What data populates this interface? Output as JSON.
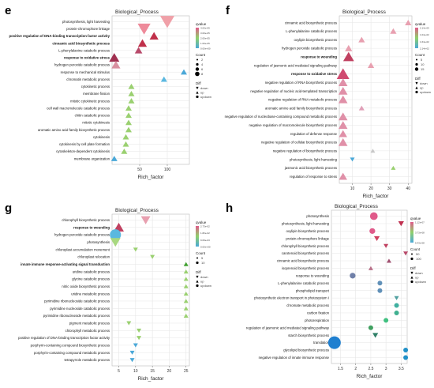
{
  "colors": {
    "qvalue_high": "#e05a8a",
    "qvalue_mid": "#8fd06a",
    "qvalue_low": "#4aa8d8",
    "grid": "#e6e6e6",
    "panel_border": "#bbbbbb"
  },
  "chart_data": [
    {
      "panel_letter": "e",
      "type": "scatter",
      "title": "Biological_Process",
      "xlabel": "Rich_factor",
      "xlim": [
        0,
        140
      ],
      "xticks": [
        "50",
        "100"
      ],
      "xtick_values": [
        50,
        100
      ],
      "legend": {
        "qvalue_title": "qvalue",
        "qvalue_labels": [
          "4.00e-05",
          "3.00e-05",
          "2.00e-05",
          "1.00e-05",
          "0.00e+00"
        ],
        "count_title": "Count",
        "count_labels": [
          "2",
          "4",
          "6",
          "8"
        ],
        "diff_title": "Diff",
        "diff_labels": [
          "down",
          "up",
          "updown"
        ]
      },
      "terms": [
        {
          "label": "photosynthesis, light harvesting",
          "bold": false,
          "x": 100,
          "count": 8,
          "shape": "down",
          "color": "#f0a0a8"
        },
        {
          "label": "protein-chromophore linkage",
          "bold": false,
          "x": 58,
          "count": 7,
          "shape": "down",
          "color": "#ee8a9a"
        },
        {
          "label": "positive regulation of DNA-binding transcription factor activity",
          "bold": true,
          "x": 76,
          "count": 4,
          "shape": "up",
          "color": "#c0304a"
        },
        {
          "label": "cinnamic acid biosynthetic process",
          "bold": true,
          "x": 55,
          "count": 4,
          "shape": "up",
          "color": "#c0304a"
        },
        {
          "label": "L-phenylalanine catabolic process",
          "bold": false,
          "x": 48,
          "count": 3,
          "shape": "up",
          "color": "#b84a6a"
        },
        {
          "label": "response to oxidative stress",
          "bold": true,
          "x": 4,
          "count": 5,
          "shape": "up",
          "color": "#a03050"
        },
        {
          "label": "hydrogen peroxide catabolic process",
          "bold": false,
          "x": 7,
          "count": 4,
          "shape": "up",
          "color": "#d890a0"
        },
        {
          "label": "response to mechanical stimulus",
          "bold": false,
          "x": 130,
          "count": 2,
          "shape": "up",
          "color": "#4aa8d8"
        },
        {
          "label": "chromatin metabolic process",
          "bold": false,
          "x": 94,
          "count": 2,
          "shape": "up",
          "color": "#5ab8e0"
        },
        {
          "label": "cytokinetic process",
          "bold": false,
          "x": 35,
          "count": 2,
          "shape": "up",
          "color": "#9ad070"
        },
        {
          "label": "membrane fission",
          "bold": false,
          "x": 35,
          "count": 2,
          "shape": "up",
          "color": "#9ad070"
        },
        {
          "label": "mitotic cytokinetic process",
          "bold": false,
          "x": 35,
          "count": 2,
          "shape": "up",
          "color": "#9ad070"
        },
        {
          "label": "cell wall macromolecule catabolic process",
          "bold": false,
          "x": 30,
          "count": 2,
          "shape": "up",
          "color": "#9ad070"
        },
        {
          "label": "chitin catabolic process",
          "bold": false,
          "x": 30,
          "count": 2,
          "shape": "up",
          "color": "#9ad070"
        },
        {
          "label": "mitotic cytokinesis",
          "bold": false,
          "x": 30,
          "count": 2,
          "shape": "up",
          "color": "#9ad070"
        },
        {
          "label": "aromatic amino acid family biosynthetic process",
          "bold": false,
          "x": 30,
          "count": 2,
          "shape": "up",
          "color": "#9ad070"
        },
        {
          "label": "cytokinesis",
          "bold": false,
          "x": 25,
          "count": 2,
          "shape": "up",
          "color": "#9ad070"
        },
        {
          "label": "cytokinesis by cell plate formation",
          "bold": false,
          "x": 25,
          "count": 2,
          "shape": "up",
          "color": "#9ad070"
        },
        {
          "label": "cytoskeleton-dependent cytokinesis",
          "bold": false,
          "x": 22,
          "count": 2,
          "shape": "up",
          "color": "#9ad070"
        },
        {
          "label": "membrane organization",
          "bold": false,
          "x": 4,
          "count": 2,
          "shape": "up",
          "color": "#4aa8d8"
        }
      ]
    },
    {
      "panel_letter": "f",
      "type": "scatter",
      "title": "Biological_Process",
      "xlabel": "Rich_factor",
      "xlim": [
        3,
        42
      ],
      "xticks": [
        "10",
        "20",
        "30",
        "40"
      ],
      "xtick_values": [
        10,
        20,
        30,
        40
      ],
      "legend": {
        "qvalue_title": "qvalue",
        "qvalue_labels": [
          "2.14e-03",
          "1.04e-02",
          "1.64e-02",
          "2.14e-02"
        ],
        "count_title": "Count",
        "count_labels": [
          "5",
          "10",
          "15"
        ],
        "diff_title": "Diff",
        "diff_labels": [
          "down",
          "up",
          "updown"
        ]
      },
      "terms": [
        {
          "label": "cinnamic acid biosynthetic process",
          "bold": false,
          "x": 40,
          "count": 5,
          "shape": "up",
          "color": "#e8a0b0"
        },
        {
          "label": "L-phenylalanine catabolic process",
          "bold": false,
          "x": 32,
          "count": 5,
          "shape": "up",
          "color": "#e8a0b0"
        },
        {
          "label": "oxylipin biosynthetic process",
          "bold": false,
          "x": 15,
          "count": 5,
          "shape": "up",
          "color": "#e8a0b0"
        },
        {
          "label": "hydrogen peroxide catabolic process",
          "bold": false,
          "x": 8,
          "count": 6,
          "shape": "up",
          "color": "#e8a0b0"
        },
        {
          "label": "response to wounding",
          "bold": true,
          "x": 8,
          "count": 10,
          "shape": "up",
          "color": "#c04060"
        },
        {
          "label": "regulation of jasmonic acid mediated signaling pathway",
          "bold": false,
          "x": 20,
          "count": 5,
          "shape": "up",
          "color": "#e8a0b0"
        },
        {
          "label": "response to oxidative stress",
          "bold": true,
          "x": 5,
          "count": 12,
          "shape": "up",
          "color": "#d04a70"
        },
        {
          "label": "negative regulation of RNA biosynthetic process",
          "bold": false,
          "x": 5,
          "count": 8,
          "shape": "up",
          "color": "#e090a8"
        },
        {
          "label": "negative regulation of nucleic acid-templated transcription",
          "bold": false,
          "x": 5,
          "count": 8,
          "shape": "up",
          "color": "#e090a8"
        },
        {
          "label": "negative regulation of RNA metabolic process",
          "bold": false,
          "x": 5,
          "count": 8,
          "shape": "up",
          "color": "#e090a8"
        },
        {
          "label": "aromatic amino acid family biosynthetic process",
          "bold": false,
          "x": 15,
          "count": 4,
          "shape": "up",
          "color": "#e0a0b8"
        },
        {
          "label": "negative regulation of nucleobase-containing compound metabolic process",
          "bold": false,
          "x": 5,
          "count": 8,
          "shape": "up",
          "color": "#e090a8"
        },
        {
          "label": "negative regulation of macromolecule biosynthetic process",
          "bold": false,
          "x": 5,
          "count": 8,
          "shape": "up",
          "color": "#e090a8"
        },
        {
          "label": "regulation of defense response",
          "bold": false,
          "x": 5,
          "count": 7,
          "shape": "up",
          "color": "#e090a8"
        },
        {
          "label": "negative regulation of cellular biosynthetic process",
          "bold": false,
          "x": 5,
          "count": 8,
          "shape": "up",
          "color": "#e090a8"
        },
        {
          "label": "negative regulation of biosynthetic process",
          "bold": false,
          "x": 21,
          "count": 3,
          "shape": "up",
          "color": "#c8c8c8"
        },
        {
          "label": "photosynthesis, light harvesting",
          "bold": false,
          "x": 10,
          "count": 3,
          "shape": "down",
          "color": "#4aa8d8"
        },
        {
          "label": "jasmonic acid biosynthetic process",
          "bold": false,
          "x": 32,
          "count": 3,
          "shape": "up",
          "color": "#9ad070"
        },
        {
          "label": "regulation of response to stress",
          "bold": false,
          "x": 5,
          "count": 7,
          "shape": "up",
          "color": "#e090a8"
        }
      ]
    },
    {
      "panel_letter": "g",
      "type": "scatter",
      "title": "Biological_Process",
      "xlabel": "Rich_factor",
      "xlim": [
        3,
        26
      ],
      "xticks": [
        "5",
        "10",
        "15",
        "20",
        "25"
      ],
      "xtick_values": [
        5,
        10,
        15,
        20,
        25
      ],
      "legend": {
        "qvalue_title": "qvalue",
        "qvalue_labels": [
          "2.73e-02",
          "1.82e-02",
          "9.09e-03",
          "0.00e+00"
        ],
        "count_title": "Count",
        "count_labels": [
          "5",
          "10"
        ],
        "diff_title": "Diff",
        "diff_labels": [
          "down",
          "up",
          "updown"
        ]
      },
      "terms": [
        {
          "label": "chlorophyll biosynthetic process",
          "bold": false,
          "x": 13,
          "count": 9,
          "shape": "down",
          "color": "#e8a0b0"
        },
        {
          "label": "response to wounding",
          "bold": true,
          "x": 5,
          "count": 10,
          "shape": "up",
          "color": "#c04060"
        },
        {
          "label": "hydrogen peroxide catabolic process",
          "bold": false,
          "x": 4,
          "count": 11,
          "shape": "circle",
          "color": "#5ab8e0"
        },
        {
          "label": "photosynthesis",
          "bold": false,
          "x": 4,
          "count": 10,
          "shape": "down",
          "color": "#a8d880"
        },
        {
          "label": "chloroplast accumulation movement",
          "bold": false,
          "x": 10,
          "count": 3,
          "shape": "down",
          "color": "#9ad070"
        },
        {
          "label": "chloroplast relocation",
          "bold": false,
          "x": 15,
          "count": 3,
          "shape": "down",
          "color": "#9ad070"
        },
        {
          "label": "innate immune response-activating signal transduction",
          "bold": true,
          "x": 25,
          "count": 3,
          "shape": "up",
          "color": "#40a030"
        },
        {
          "label": "uridine catabolic process",
          "bold": false,
          "x": 25,
          "count": 3,
          "shape": "up",
          "color": "#9ad070"
        },
        {
          "label": "glycine catabolic process",
          "bold": false,
          "x": 25,
          "count": 3,
          "shape": "up",
          "color": "#9ad070"
        },
        {
          "label": "nitric oxide biosynthetic process",
          "bold": false,
          "x": 25,
          "count": 3,
          "shape": "up",
          "color": "#9ad070"
        },
        {
          "label": "uridine metabolic process",
          "bold": false,
          "x": 25,
          "count": 3,
          "shape": "up",
          "color": "#9ad070"
        },
        {
          "label": "pyrimidine ribonucleoside catabolic process",
          "bold": false,
          "x": 25,
          "count": 3,
          "shape": "up",
          "color": "#9ad070"
        },
        {
          "label": "pyrimidine nucleoside catabolic process",
          "bold": false,
          "x": 25,
          "count": 3,
          "shape": "up",
          "color": "#9ad070"
        },
        {
          "label": "pyrimidine ribonucleoside metabolic process",
          "bold": false,
          "x": 25,
          "count": 3,
          "shape": "up",
          "color": "#9ad070"
        },
        {
          "label": "pigment metabolic process",
          "bold": false,
          "x": 8,
          "count": 3,
          "shape": "down",
          "color": "#9ad070"
        },
        {
          "label": "chlorophyll metabolic process",
          "bold": false,
          "x": 11,
          "count": 3,
          "shape": "down",
          "color": "#9ad070"
        },
        {
          "label": "positive regulation of DNA-binding transcription factor activity",
          "bold": false,
          "x": 11,
          "count": 3,
          "shape": "down",
          "color": "#9ad070"
        },
        {
          "label": "porphyrin-containing compound biosynthetic process",
          "bold": false,
          "x": 10,
          "count": 3,
          "shape": "down",
          "color": "#4aa8d8"
        },
        {
          "label": "porphyrin-containing compound metabolic process",
          "bold": false,
          "x": 9,
          "count": 3,
          "shape": "down",
          "color": "#4aa8d8"
        },
        {
          "label": "tetrapyrrole metabolic process",
          "bold": false,
          "x": 9,
          "count": 3,
          "shape": "down",
          "color": "#4aa8d8"
        }
      ]
    },
    {
      "panel_letter": "h",
      "type": "scatter",
      "title": "Biological_Process",
      "xlabel": "Rich_factor",
      "xlim": [
        1.2,
        3.7
      ],
      "xticks": [
        "1.5",
        "2",
        "2.5",
        "3",
        "3.5"
      ],
      "xtick_values": [
        1.5,
        2,
        2.5,
        3,
        3.5
      ],
      "legend": {
        "qvalue_title": "qvalue",
        "qvalue_labels": [
          "1.12e-07",
          "3.73e-08",
          "5.43e-08"
        ],
        "count_title": "Count",
        "count_labels": [
          "50",
          "100"
        ],
        "diff_title": "Diff",
        "diff_labels": [
          "down",
          "up",
          "updown"
        ]
      },
      "terms": [
        {
          "label": "photosynthesis",
          "bold": false,
          "x": 2.6,
          "count": 60,
          "shape": "circle",
          "color": "#e05a8a"
        },
        {
          "label": "photosynthesis, light harvesting",
          "bold": false,
          "x": 3.5,
          "count": 40,
          "shape": "down",
          "color": "#c03050"
        },
        {
          "label": "oxylipin biosynthetic process",
          "bold": false,
          "x": 2.55,
          "count": 40,
          "shape": "circle",
          "color": "#e05a8a"
        },
        {
          "label": "protein-chromophore linkage",
          "bold": false,
          "x": 2.7,
          "count": 40,
          "shape": "down",
          "color": "#d04060"
        },
        {
          "label": "chlorophyll biosynthetic process",
          "bold": false,
          "x": 3.0,
          "count": 30,
          "shape": "down",
          "color": "#c04060"
        },
        {
          "label": "carotenoid biosynthetic process",
          "bold": false,
          "x": 3.65,
          "count": 30,
          "shape": "down",
          "color": "#b84a6a"
        },
        {
          "label": "cinnamic acid biosynthetic process",
          "bold": false,
          "x": 3.1,
          "count": 30,
          "shape": "up",
          "color": "#a05070"
        },
        {
          "label": "isoprenoid biosynthetic process",
          "bold": false,
          "x": 2.5,
          "count": 30,
          "shape": "up",
          "color": "#b87088"
        },
        {
          "label": "response to wounding",
          "bold": false,
          "x": 1.9,
          "count": 40,
          "shape": "circle",
          "color": "#7080a8"
        },
        {
          "label": "L-phenylalanine catabolic process",
          "bold": false,
          "x": 2.8,
          "count": 30,
          "shape": "circle",
          "color": "#6090b8"
        },
        {
          "label": "phospholipid transport",
          "bold": false,
          "x": 2.8,
          "count": 30,
          "shape": "circle",
          "color": "#6090b8"
        },
        {
          "label": "photosynthetic electron transport in photosystem I",
          "bold": false,
          "x": 3.35,
          "count": 30,
          "shape": "down",
          "color": "#50a0a0"
        },
        {
          "label": "chromate metabolic process",
          "bold": false,
          "x": 3.35,
          "count": 30,
          "shape": "circle",
          "color": "#40b0a0"
        },
        {
          "label": "carbon fixation",
          "bold": false,
          "x": 3.35,
          "count": 30,
          "shape": "circle",
          "color": "#40b090"
        },
        {
          "label": "photorespiration",
          "bold": false,
          "x": 3.0,
          "count": 30,
          "shape": "circle",
          "color": "#40c080"
        },
        {
          "label": "regulation of jasmonic acid mediated signaling pathway",
          "bold": false,
          "x": 2.5,
          "count": 30,
          "shape": "circle",
          "color": "#40a060"
        },
        {
          "label": "starch biosynthetic process",
          "bold": false,
          "x": 2.65,
          "count": 40,
          "shape": "down",
          "color": "#308068"
        },
        {
          "label": "translation",
          "bold": false,
          "x": 1.3,
          "count": 110,
          "shape": "circle",
          "color": "#2080d0"
        },
        {
          "label": "glycolipid biosynthetic process",
          "bold": false,
          "x": 3.65,
          "count": 30,
          "shape": "circle",
          "color": "#2090c8"
        },
        {
          "label": "negative regulation of innate immune response",
          "bold": false,
          "x": 3.65,
          "count": 30,
          "shape": "circle",
          "color": "#2090c8"
        }
      ]
    }
  ]
}
